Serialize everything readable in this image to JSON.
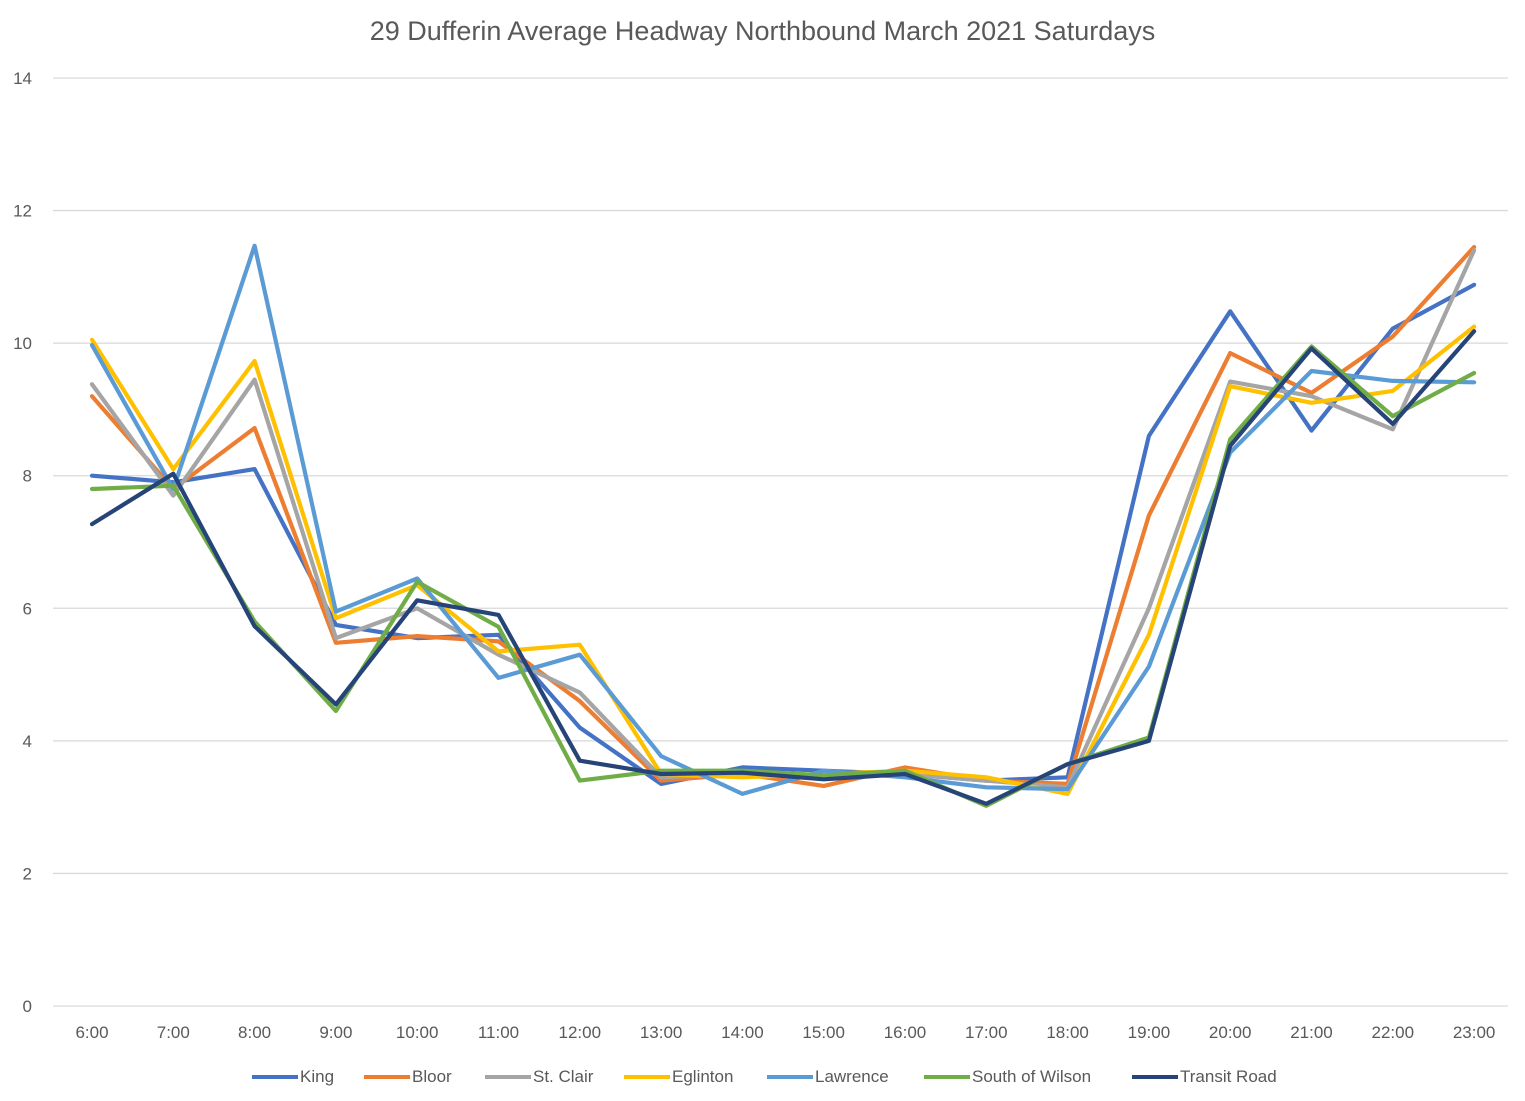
{
  "chart_data": {
    "type": "line",
    "title": "29 Dufferin  Average Headway Northbound March 2021 Saturdays",
    "xlabel": "",
    "ylabel": "",
    "ylim": [
      0,
      14
    ],
    "yticks": [
      0,
      2,
      4,
      6,
      8,
      10,
      12,
      14
    ],
    "grid": true,
    "legend_position": "bottom",
    "categories": [
      "6:00",
      "7:00",
      "8:00",
      "9:00",
      "10:00",
      "11:00",
      "12:00",
      "13:00",
      "14:00",
      "15:00",
      "16:00",
      "17:00",
      "18:00",
      "19:00",
      "20:00",
      "21:00",
      "22:00",
      "23:00"
    ],
    "series": [
      {
        "name": "King",
        "color": "#4472C4",
        "values": [
          8.0,
          7.9,
          8.1,
          5.75,
          5.55,
          5.6,
          4.2,
          3.35,
          3.6,
          3.55,
          3.5,
          3.4,
          3.45,
          8.6,
          10.48,
          8.68,
          10.22,
          10.88
        ]
      },
      {
        "name": "Bloor",
        "color": "#ED7D31",
        "values": [
          9.2,
          7.8,
          8.72,
          5.48,
          5.58,
          5.5,
          4.6,
          3.4,
          3.5,
          3.32,
          3.6,
          3.4,
          3.35,
          7.4,
          9.85,
          9.25,
          10.1,
          11.45
        ]
      },
      {
        "name": "St. Clair",
        "color": "#A5A5A5",
        "values": [
          9.38,
          7.7,
          9.45,
          5.55,
          6.0,
          5.3,
          4.73,
          3.45,
          3.5,
          3.48,
          3.5,
          3.4,
          3.3,
          6.0,
          9.42,
          9.2,
          8.7,
          11.4
        ]
      },
      {
        "name": "Eglinton",
        "color": "#FFC000",
        "values": [
          10.05,
          8.1,
          9.73,
          5.85,
          6.35,
          5.35,
          5.45,
          3.5,
          3.45,
          3.5,
          3.55,
          3.45,
          3.2,
          5.6,
          9.35,
          9.1,
          9.28,
          10.25
        ]
      },
      {
        "name": "Lawrence",
        "color": "#5B9BD5",
        "values": [
          9.97,
          7.8,
          11.47,
          5.95,
          6.45,
          4.95,
          5.3,
          3.77,
          3.2,
          3.55,
          3.45,
          3.3,
          3.27,
          5.12,
          8.35,
          9.58,
          9.43,
          9.41
        ]
      },
      {
        "name": "South of Wilson",
        "color": "#70AD47",
        "values": [
          7.8,
          7.85,
          5.8,
          4.45,
          6.4,
          5.72,
          3.4,
          3.55,
          3.55,
          3.48,
          3.55,
          3.02,
          3.65,
          4.05,
          8.55,
          9.95,
          8.9,
          9.55
        ]
      },
      {
        "name": "Transit Road",
        "color": "#264478",
        "values": [
          7.27,
          8.03,
          5.73,
          4.55,
          6.12,
          5.9,
          3.7,
          3.5,
          3.52,
          3.42,
          3.5,
          3.05,
          3.65,
          4.0,
          8.45,
          9.92,
          8.78,
          10.18
        ]
      }
    ]
  }
}
